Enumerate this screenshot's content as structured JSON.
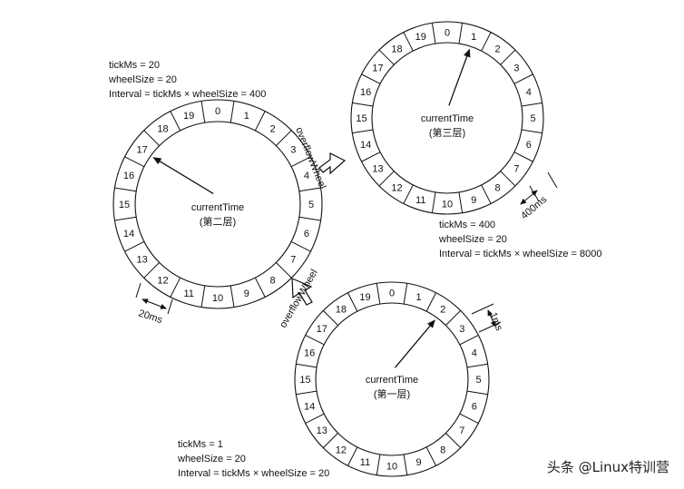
{
  "info": {
    "layer2": {
      "tickMs": "tickMs = 20",
      "wheelSize": "wheelSize = 20",
      "interval": "Interval = tickMs × wheelSize = 400"
    },
    "layer3": {
      "tickMs": "tickMs = 400",
      "wheelSize": "wheelSize = 20",
      "interval": "Interval = tickMs × wheelSize = 8000"
    },
    "layer1": {
      "tickMs": "tickMs = 1",
      "wheelSize": "wheelSize = 20",
      "interval": "Interval = tickMs × wheelSize = 20"
    }
  },
  "wheels": {
    "layer2": {
      "current_label": "currentTime",
      "layer_label": "(第二层)",
      "pointer_slot": 17,
      "tick_label": "20ms"
    },
    "layer3": {
      "current_label": "currentTime",
      "layer_label": "(第三层)",
      "pointer_slot": 1,
      "tick_label": "400ms"
    },
    "layer1": {
      "current_label": "currentTime",
      "layer_label": "(第一层)",
      "pointer_slot": 2,
      "tick_label": "1ms"
    }
  },
  "slots": [
    "0",
    "1",
    "2",
    "3",
    "4",
    "5",
    "6",
    "7",
    "8",
    "9",
    "10",
    "11",
    "12",
    "13",
    "14",
    "15",
    "16",
    "17",
    "18",
    "19"
  ],
  "overflow_label": "overflowWheel",
  "watermark": "头条 @Linux特训营"
}
